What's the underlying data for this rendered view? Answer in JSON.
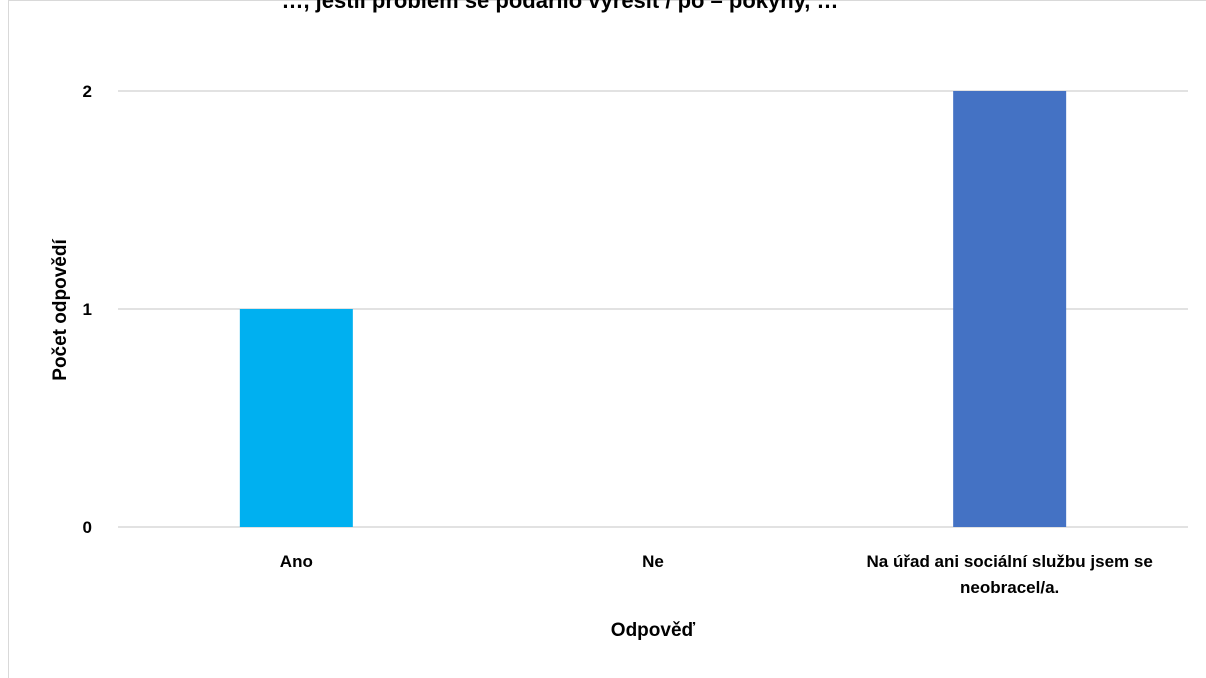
{
  "chart_data": {
    "type": "bar",
    "title": "…, jestli problém se podařilo vyřešit / po – pokyny, …",
    "xlabel": "Odpověď",
    "ylabel": "Počet odpovědí",
    "categories": [
      "Ano",
      "Ne",
      "Na úřad ani sociální službu jsem se neobracel/a."
    ],
    "category_label_lines": [
      [
        "Ano"
      ],
      [
        "Ne"
      ],
      [
        "Na úřad ani sociální službu jsem se",
        "neobracel/a."
      ]
    ],
    "values": [
      1,
      0,
      2
    ],
    "bar_colors": [
      "#00b0f0",
      "#00b0f0",
      "#4472c4"
    ],
    "ylim": [
      0,
      2
    ],
    "yticks": [
      0,
      1,
      2
    ],
    "grid": true,
    "gridline_color": "#d9d9d9"
  }
}
